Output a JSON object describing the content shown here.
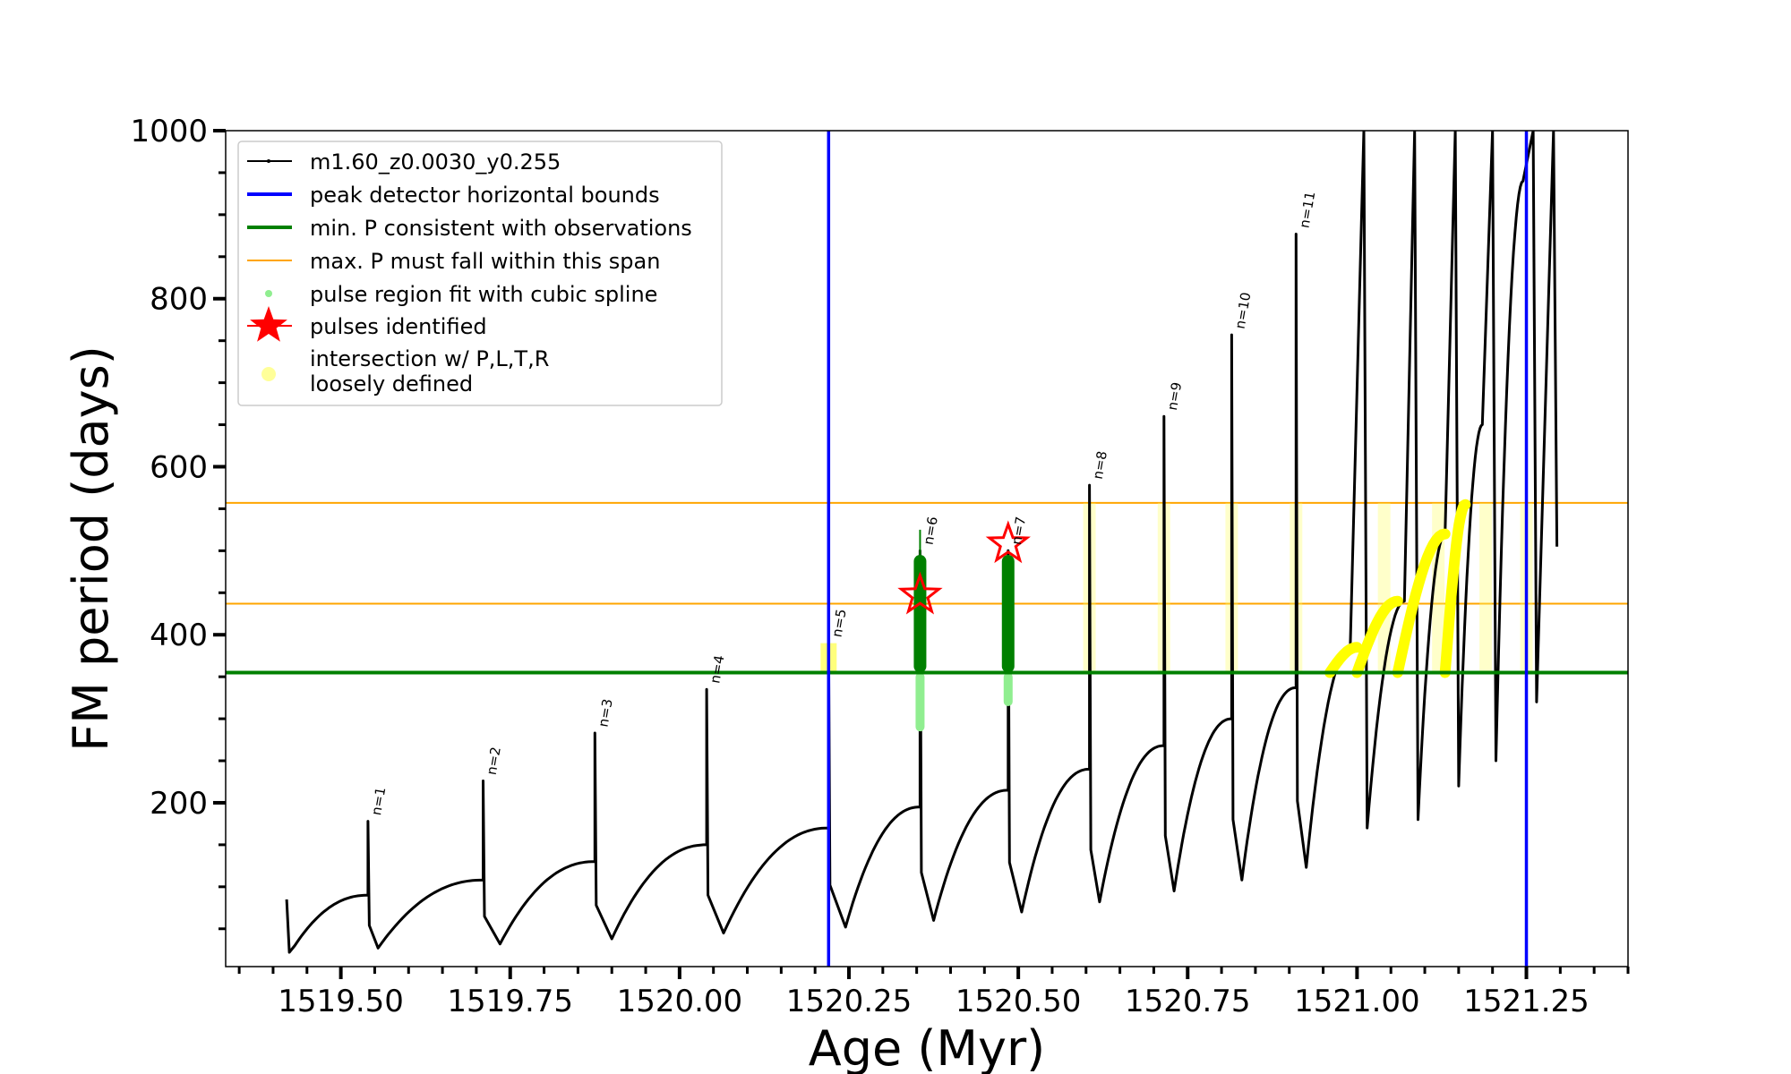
{
  "chart_data": {
    "type": "line",
    "xlabel": "Age (Myr)",
    "ylabel": "FM period (days)",
    "xlim": [
      1519.33,
      1521.4
    ],
    "ylim": [
      5,
      1000
    ],
    "x_ticks": [
      1519.5,
      1519.75,
      1520.0,
      1520.25,
      1520.5,
      1520.75,
      1521.0,
      1521.25
    ],
    "x_tick_labels": [
      "1519.50",
      "1519.75",
      "1520.00",
      "1520.25",
      "1520.50",
      "1520.75",
      "1521.00",
      "1521.25"
    ],
    "y_ticks": [
      200,
      400,
      600,
      800,
      1000
    ],
    "y_tick_labels": [
      "200",
      "400",
      "600",
      "800",
      "1000"
    ],
    "legend": {
      "placement": "upper-left",
      "entries": [
        {
          "label": "m1.60_z0.0030_y0.255",
          "color": "#000000",
          "style": "line-marker"
        },
        {
          "label": "peak detector horizontal bounds",
          "color": "#0000ff",
          "style": "line"
        },
        {
          "label": "min. P consistent with observations",
          "color": "#008000",
          "style": "line"
        },
        {
          "label": "max. P must fall within this span",
          "color": "#ffa500",
          "style": "thin-line"
        },
        {
          "label": "pulse region fit with cubic spline",
          "color": "#90ee90",
          "style": "dot"
        },
        {
          "label": "pulses identified",
          "color": "#ff0000",
          "style": "star"
        },
        {
          "label": "intersection w/ P,L,T,R\nloosely defined",
          "color": "#ffff00",
          "style": "dot-faint"
        }
      ]
    },
    "reference_lines": {
      "vertical_blue": [
        1520.22,
        1521.25
      ],
      "horizontal_green": 355,
      "horizontal_orange": [
        437,
        557
      ]
    },
    "pulses": [
      {
        "label": "n=1",
        "x": 1519.54,
        "pre_peak": 90,
        "peak": 178,
        "min": 27,
        "min_x": 1519.555
      },
      {
        "label": "n=2",
        "x": 1519.71,
        "pre_peak": 108,
        "peak": 226,
        "min": 32,
        "min_x": 1519.735
      },
      {
        "label": "n=3",
        "x": 1519.875,
        "pre_peak": 130,
        "peak": 283,
        "min": 38,
        "min_x": 1519.9
      },
      {
        "label": "n=4",
        "x": 1520.04,
        "pre_peak": 150,
        "peak": 335,
        "min": 45,
        "min_x": 1520.065
      },
      {
        "label": "n=5",
        "x": 1520.22,
        "pre_peak": 170,
        "peak": 390,
        "min": 52,
        "min_x": 1520.245
      },
      {
        "label": "n=6",
        "x": 1520.355,
        "pre_peak": 195,
        "peak": 500,
        "min": 60,
        "min_x": 1520.375
      },
      {
        "label": "n=7",
        "x": 1520.485,
        "pre_peak": 215,
        "peak": 500,
        "min": 70,
        "min_x": 1520.505
      },
      {
        "label": "n=8",
        "x": 1520.605,
        "pre_peak": 240,
        "peak": 578,
        "min": 82,
        "min_x": 1520.62
      },
      {
        "label": "n=9",
        "x": 1520.715,
        "pre_peak": 268,
        "peak": 660,
        "min": 95,
        "min_x": 1520.73
      },
      {
        "label": "n=10",
        "x": 1520.815,
        "pre_peak": 300,
        "peak": 757,
        "min": 108,
        "min_x": 1520.83
      },
      {
        "label": "n=11",
        "x": 1520.91,
        "pre_peak": 337,
        "peak": 877,
        "min": 123,
        "min_x": 1520.925
      }
    ],
    "pulses_identified": [
      {
        "x": 1520.355,
        "y": 447
      },
      {
        "x": 1520.485,
        "y": 508
      }
    ],
    "green_fit_regions": [
      {
        "x": 1520.355,
        "y_min": 355,
        "y_max": 495
      },
      {
        "x": 1520.485,
        "y_min": 355,
        "y_max": 495
      }
    ],
    "light_green_regions": [
      {
        "x": 1520.355,
        "y_min": 285,
        "y_max": 355
      },
      {
        "x": 1520.485,
        "y_min": 315,
        "y_max": 355
      }
    ]
  }
}
